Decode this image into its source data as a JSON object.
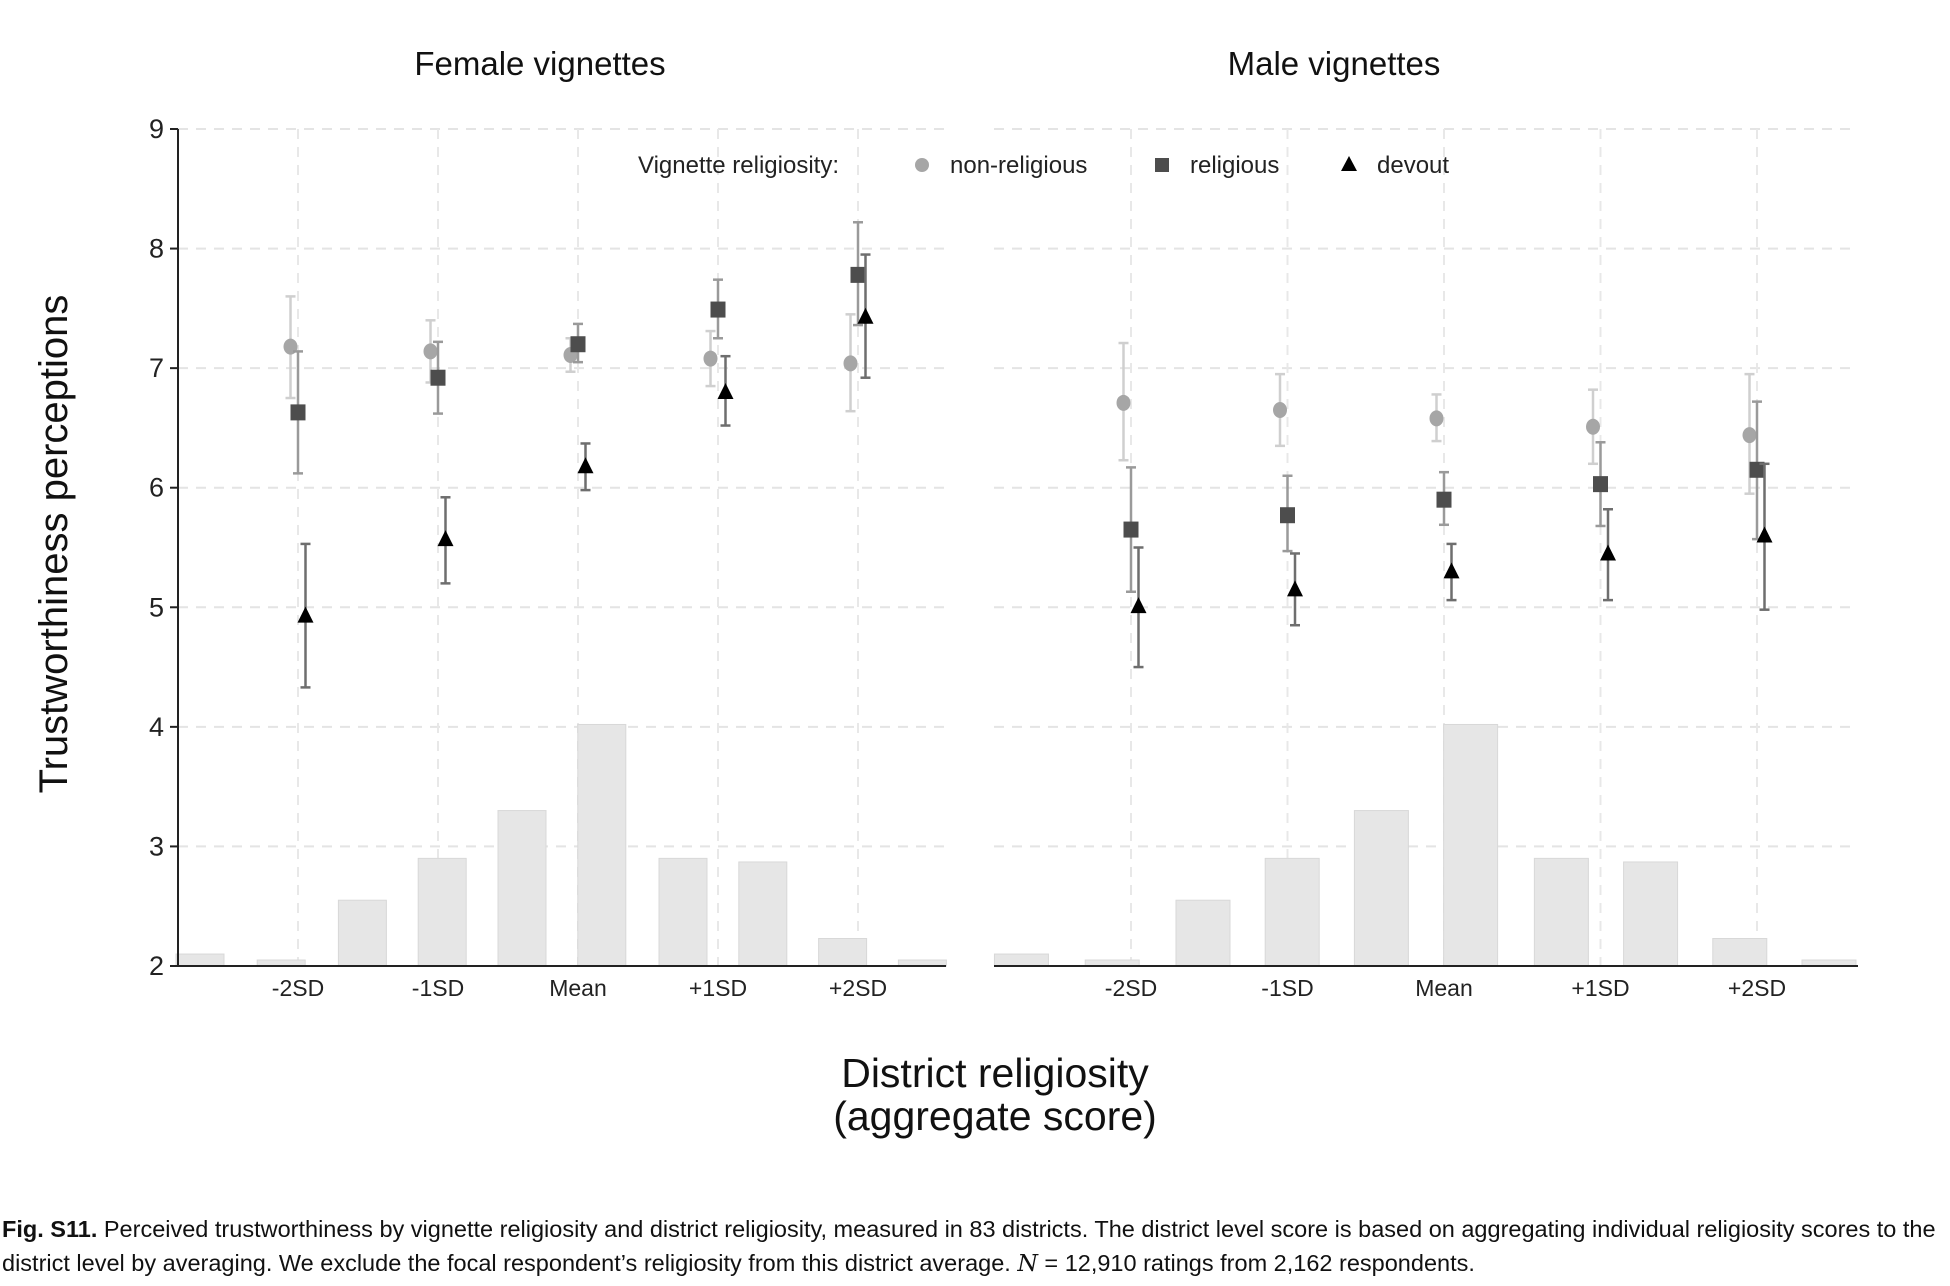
{
  "chart_data": {
    "type": "scatter",
    "subtype": "point-estimates-with-error-bars-and-background-histogram",
    "ylabel": "Trustworthiness perceptions",
    "xlabel_lines": [
      "District religiosity",
      "(aggregate score)"
    ],
    "ylim": [
      2,
      9
    ],
    "yticks": [
      2,
      3,
      4,
      5,
      6,
      7,
      8,
      9
    ],
    "categories": [
      "-2SD",
      "-1SD",
      "Mean",
      "+1SD",
      "+2SD"
    ],
    "category_sd": [
      -2,
      -1,
      0,
      1,
      2
    ],
    "grid": true,
    "legend": {
      "title": "Vignette religiosity:",
      "placement": "top",
      "entries": [
        {
          "name": "non-religious",
          "marker": "circle",
          "color": "#a6a6a6"
        },
        {
          "name": "religious",
          "marker": "square",
          "color": "#4d4d4d"
        },
        {
          "name": "devout",
          "marker": "triangle",
          "color": "#000000"
        }
      ]
    },
    "histogram": {
      "bin_centers_sd": [
        -2.7,
        -2.12,
        -1.54,
        -0.97,
        -0.4,
        0.17,
        0.75,
        1.32,
        1.89,
        2.46
      ],
      "heights_in_y_units": [
        2.1,
        2.05,
        2.55,
        2.9,
        3.3,
        4.02,
        2.9,
        2.87,
        2.23,
        2.05
      ],
      "color": "#e6e6e6"
    },
    "panels": [
      {
        "title": "Female vignettes",
        "series": [
          {
            "name": "non-religious",
            "values": [
              7.18,
              7.14,
              7.11,
              7.08,
              7.04
            ],
            "lower": [
              6.75,
              6.88,
              6.97,
              6.85,
              6.64
            ],
            "upper": [
              7.6,
              7.4,
              7.25,
              7.31,
              7.45
            ]
          },
          {
            "name": "religious",
            "values": [
              6.63,
              6.92,
              7.2,
              7.49,
              7.78
            ],
            "lower": [
              6.12,
              6.62,
              7.05,
              7.25,
              7.36
            ],
            "upper": [
              7.14,
              7.22,
              7.37,
              7.74,
              8.22
            ]
          },
          {
            "name": "devout",
            "values": [
              4.93,
              5.57,
              6.18,
              6.8,
              7.43
            ],
            "lower": [
              4.33,
              5.2,
              5.98,
              6.52,
              6.92
            ],
            "upper": [
              5.53,
              5.92,
              6.37,
              7.1,
              7.95
            ]
          }
        ]
      },
      {
        "title": "Male vignettes",
        "series": [
          {
            "name": "non-religious",
            "values": [
              6.71,
              6.65,
              6.58,
              6.51,
              6.44
            ],
            "lower": [
              6.23,
              6.35,
              6.39,
              6.2,
              5.95
            ],
            "upper": [
              7.21,
              6.95,
              6.78,
              6.82,
              6.95
            ]
          },
          {
            "name": "religious",
            "values": [
              5.65,
              5.77,
              5.9,
              6.03,
              6.15
            ],
            "lower": [
              5.13,
              5.47,
              5.69,
              5.68,
              5.57
            ],
            "upper": [
              6.17,
              6.1,
              6.13,
              6.38,
              6.72
            ]
          },
          {
            "name": "devout",
            "values": [
              5.01,
              5.15,
              5.3,
              5.45,
              5.6
            ],
            "lower": [
              4.5,
              4.85,
              5.06,
              5.06,
              4.98
            ],
            "upper": [
              5.5,
              5.45,
              5.53,
              5.82,
              6.2
            ]
          }
        ]
      }
    ]
  },
  "caption": {
    "label": "Fig. S11.",
    "text1": " Perceived trustworthiness by vignette religiosity and district religiosity, measured in 83 districts. The district level score is based on aggregating individual religiosity scores to the district level by averaging. We exclude the focal respondent’s religiosity from this district average. ",
    "n_symbol": "N",
    "text2": " = 12,910 ratings from 2,162 respondents."
  }
}
